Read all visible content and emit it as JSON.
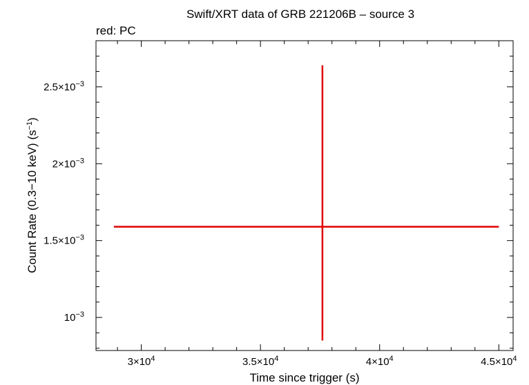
{
  "chart_data": {
    "type": "scatter",
    "title": "Swift/XRT data of GRB 221206B – source 3",
    "subtitle": "red: PC",
    "xlabel": "Time since trigger (s)",
    "ylabel_parts": [
      "Count Rate (0.3−10 keV) (s",
      "−1",
      ")"
    ],
    "xlim": [
      28100,
      45600
    ],
    "ylim": [
      0.000785,
      0.0028
    ],
    "x_ticks": [
      {
        "value": 30000,
        "mantissa": "3×10",
        "exp": "4"
      },
      {
        "value": 35000,
        "mantissa": "3.5×10",
        "exp": "4"
      },
      {
        "value": 40000,
        "mantissa": "4×10",
        "exp": "4"
      },
      {
        "value": 45000,
        "mantissa": "4.5×10",
        "exp": "4"
      }
    ],
    "y_ticks": [
      {
        "value": 0.001,
        "mantissa": "10",
        "exp": "−3"
      },
      {
        "value": 0.0015,
        "mantissa": "1.5×10",
        "exp": "−3"
      },
      {
        "value": 0.002,
        "mantissa": "2×10",
        "exp": "−3"
      },
      {
        "value": 0.0025,
        "mantissa": "2.5×10",
        "exp": "−3"
      }
    ],
    "grid": false,
    "series": [
      {
        "name": "PC",
        "color": "#e00000",
        "points": [
          {
            "x": 37600,
            "x_err_minus": 8750,
            "x_err_plus": 7400,
            "y": 0.00159,
            "y_err_minus": 0.00074,
            "y_err_plus": 0.00105
          }
        ]
      }
    ]
  }
}
